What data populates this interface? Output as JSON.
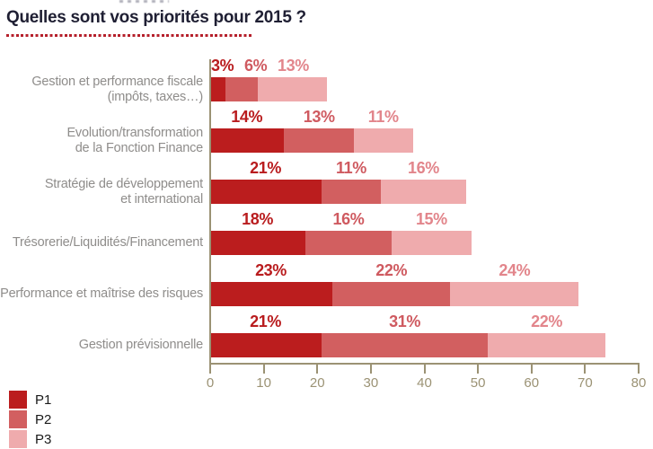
{
  "chart_data": {
    "type": "bar",
    "orientation": "horizontal",
    "stacked": true,
    "title": "Quelles sont vos priorités pour 2015 ?",
    "categories": [
      "Gestion et performance fiscale (impôts, taxes…)",
      "Evolution/transformation de la Fonction Finance",
      "Stratégie de développement et international",
      "Trésorerie/Liquidités/Financement",
      "Performance et maîtrise des risques",
      "Gestion prévisionnelle"
    ],
    "category_label_lines": [
      [
        "Gestion et performance fiscale",
        "(impôts, taxes…)"
      ],
      [
        "Evolution/transformation",
        "de la Fonction Finance"
      ],
      [
        "Stratégie de développement",
        "et international"
      ],
      [
        "Trésorerie/Liquidités/Financement"
      ],
      [
        "Performance et maîtrise des risques"
      ],
      [
        "Gestion prévisionnelle"
      ]
    ],
    "series": [
      {
        "name": "P1",
        "color": "#bb1d1e",
        "label_color": "#b91c1e",
        "values": [
          3,
          14,
          21,
          18,
          23,
          21
        ]
      },
      {
        "name": "P2",
        "color": "#d25f60",
        "label_color": "#cf5a60",
        "values": [
          6,
          13,
          11,
          16,
          22,
          31
        ]
      },
      {
        "name": "P3",
        "color": "#efabad",
        "label_color": "#e2858b",
        "values": [
          13,
          11,
          16,
          15,
          24,
          22
        ]
      }
    ],
    "value_suffix": "%",
    "xlim": [
      0,
      80
    ],
    "x_ticks": [
      0,
      10,
      20,
      30,
      40,
      50,
      60,
      70,
      80
    ],
    "grid": false,
    "legend_position": "bottom-left",
    "axis_color": "#9b9274",
    "title_color": "#1f1f33",
    "title_underline_color": "#b5202b",
    "category_label_color": "#8f8d8b"
  },
  "legend": {
    "items": [
      {
        "label": "P1"
      },
      {
        "label": "P2"
      },
      {
        "label": "P3"
      }
    ]
  }
}
